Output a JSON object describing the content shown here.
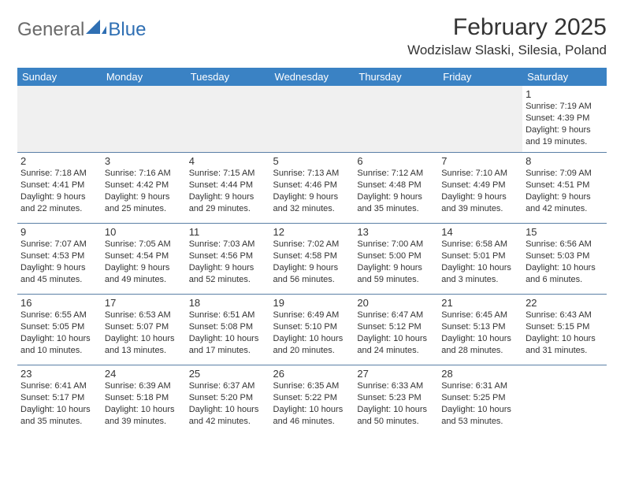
{
  "logo": {
    "general": "General",
    "blue": "Blue"
  },
  "title": "February 2025",
  "location": "Wodzislaw Slaski, Silesia, Poland",
  "colors": {
    "header_bg": "#3a82c4",
    "header_fg": "#ffffff",
    "row_divider": "#5a7fa6",
    "empty_bg": "#f0f0f0",
    "logo_blue": "#2f6fb3"
  },
  "day_headers": [
    "Sunday",
    "Monday",
    "Tuesday",
    "Wednesday",
    "Thursday",
    "Friday",
    "Saturday"
  ],
  "weeks": [
    [
      {
        "n": "",
        "sr": "",
        "ss": "",
        "dl": ""
      },
      {
        "n": "",
        "sr": "",
        "ss": "",
        "dl": ""
      },
      {
        "n": "",
        "sr": "",
        "ss": "",
        "dl": ""
      },
      {
        "n": "",
        "sr": "",
        "ss": "",
        "dl": ""
      },
      {
        "n": "",
        "sr": "",
        "ss": "",
        "dl": ""
      },
      {
        "n": "",
        "sr": "",
        "ss": "",
        "dl": ""
      },
      {
        "n": "1",
        "sr": "Sunrise: 7:19 AM",
        "ss": "Sunset: 4:39 PM",
        "dl": "Daylight: 9 hours and 19 minutes."
      }
    ],
    [
      {
        "n": "2",
        "sr": "Sunrise: 7:18 AM",
        "ss": "Sunset: 4:41 PM",
        "dl": "Daylight: 9 hours and 22 minutes."
      },
      {
        "n": "3",
        "sr": "Sunrise: 7:16 AM",
        "ss": "Sunset: 4:42 PM",
        "dl": "Daylight: 9 hours and 25 minutes."
      },
      {
        "n": "4",
        "sr": "Sunrise: 7:15 AM",
        "ss": "Sunset: 4:44 PM",
        "dl": "Daylight: 9 hours and 29 minutes."
      },
      {
        "n": "5",
        "sr": "Sunrise: 7:13 AM",
        "ss": "Sunset: 4:46 PM",
        "dl": "Daylight: 9 hours and 32 minutes."
      },
      {
        "n": "6",
        "sr": "Sunrise: 7:12 AM",
        "ss": "Sunset: 4:48 PM",
        "dl": "Daylight: 9 hours and 35 minutes."
      },
      {
        "n": "7",
        "sr": "Sunrise: 7:10 AM",
        "ss": "Sunset: 4:49 PM",
        "dl": "Daylight: 9 hours and 39 minutes."
      },
      {
        "n": "8",
        "sr": "Sunrise: 7:09 AM",
        "ss": "Sunset: 4:51 PM",
        "dl": "Daylight: 9 hours and 42 minutes."
      }
    ],
    [
      {
        "n": "9",
        "sr": "Sunrise: 7:07 AM",
        "ss": "Sunset: 4:53 PM",
        "dl": "Daylight: 9 hours and 45 minutes."
      },
      {
        "n": "10",
        "sr": "Sunrise: 7:05 AM",
        "ss": "Sunset: 4:54 PM",
        "dl": "Daylight: 9 hours and 49 minutes."
      },
      {
        "n": "11",
        "sr": "Sunrise: 7:03 AM",
        "ss": "Sunset: 4:56 PM",
        "dl": "Daylight: 9 hours and 52 minutes."
      },
      {
        "n": "12",
        "sr": "Sunrise: 7:02 AM",
        "ss": "Sunset: 4:58 PM",
        "dl": "Daylight: 9 hours and 56 minutes."
      },
      {
        "n": "13",
        "sr": "Sunrise: 7:00 AM",
        "ss": "Sunset: 5:00 PM",
        "dl": "Daylight: 9 hours and 59 minutes."
      },
      {
        "n": "14",
        "sr": "Sunrise: 6:58 AM",
        "ss": "Sunset: 5:01 PM",
        "dl": "Daylight: 10 hours and 3 minutes."
      },
      {
        "n": "15",
        "sr": "Sunrise: 6:56 AM",
        "ss": "Sunset: 5:03 PM",
        "dl": "Daylight: 10 hours and 6 minutes."
      }
    ],
    [
      {
        "n": "16",
        "sr": "Sunrise: 6:55 AM",
        "ss": "Sunset: 5:05 PM",
        "dl": "Daylight: 10 hours and 10 minutes."
      },
      {
        "n": "17",
        "sr": "Sunrise: 6:53 AM",
        "ss": "Sunset: 5:07 PM",
        "dl": "Daylight: 10 hours and 13 minutes."
      },
      {
        "n": "18",
        "sr": "Sunrise: 6:51 AM",
        "ss": "Sunset: 5:08 PM",
        "dl": "Daylight: 10 hours and 17 minutes."
      },
      {
        "n": "19",
        "sr": "Sunrise: 6:49 AM",
        "ss": "Sunset: 5:10 PM",
        "dl": "Daylight: 10 hours and 20 minutes."
      },
      {
        "n": "20",
        "sr": "Sunrise: 6:47 AM",
        "ss": "Sunset: 5:12 PM",
        "dl": "Daylight: 10 hours and 24 minutes."
      },
      {
        "n": "21",
        "sr": "Sunrise: 6:45 AM",
        "ss": "Sunset: 5:13 PM",
        "dl": "Daylight: 10 hours and 28 minutes."
      },
      {
        "n": "22",
        "sr": "Sunrise: 6:43 AM",
        "ss": "Sunset: 5:15 PM",
        "dl": "Daylight: 10 hours and 31 minutes."
      }
    ],
    [
      {
        "n": "23",
        "sr": "Sunrise: 6:41 AM",
        "ss": "Sunset: 5:17 PM",
        "dl": "Daylight: 10 hours and 35 minutes."
      },
      {
        "n": "24",
        "sr": "Sunrise: 6:39 AM",
        "ss": "Sunset: 5:18 PM",
        "dl": "Daylight: 10 hours and 39 minutes."
      },
      {
        "n": "25",
        "sr": "Sunrise: 6:37 AM",
        "ss": "Sunset: 5:20 PM",
        "dl": "Daylight: 10 hours and 42 minutes."
      },
      {
        "n": "26",
        "sr": "Sunrise: 6:35 AM",
        "ss": "Sunset: 5:22 PM",
        "dl": "Daylight: 10 hours and 46 minutes."
      },
      {
        "n": "27",
        "sr": "Sunrise: 6:33 AM",
        "ss": "Sunset: 5:23 PM",
        "dl": "Daylight: 10 hours and 50 minutes."
      },
      {
        "n": "28",
        "sr": "Sunrise: 6:31 AM",
        "ss": "Sunset: 5:25 PM",
        "dl": "Daylight: 10 hours and 53 minutes."
      },
      {
        "n": "",
        "sr": "",
        "ss": "",
        "dl": ""
      }
    ]
  ]
}
